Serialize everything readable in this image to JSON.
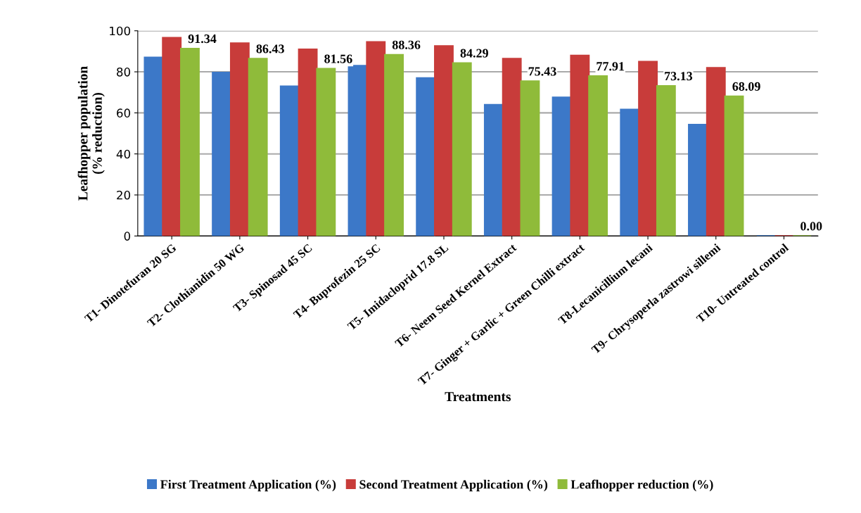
{
  "chart_data": {
    "type": "bar",
    "xlabel": "Treatments",
    "ylabel": "Leafhopper population\n(% reduction)",
    "categories": [
      "T1- Dinotefuran 20 SG",
      "T2- Clothianidin 50 WG",
      "T3- Spinosad 45 SC",
      "T4- Buprofezin 25 SC",
      "T5- Imidacloprid 17.8 SL",
      "T6- Neem Seed Kernel Extract",
      "T7- Ginger + Garlic + Green Chilli extract",
      "T8-Lecanicillium lecani",
      "T9- Chrysoperla zastrowi sillemi",
      "T10- Untreated control"
    ],
    "series": [
      {
        "name": "First Treatment Application (%)",
        "color": "#3c78c8",
        "values": [
          87,
          79.7,
          73,
          83,
          77,
          64,
          67.6,
          61.7,
          54.3,
          0
        ]
      },
      {
        "name": "Second Treatment Application (%)",
        "color": "#c83c3a",
        "values": [
          96.6,
          94,
          91,
          94.6,
          92.6,
          86.4,
          88,
          85,
          82,
          0
        ]
      },
      {
        "name": "Leafhopper reduction (%)",
        "color": "#8fbb3a",
        "values": [
          91.34,
          86.43,
          81.56,
          88.36,
          84.29,
          75.43,
          77.91,
          73.13,
          68.09,
          0
        ],
        "value_labels": [
          "91.34",
          "86.43",
          "81.56",
          "88.36",
          "84.29",
          "75.43",
          "77.91",
          "73.13",
          "68.09",
          "0.00"
        ]
      }
    ],
    "ylim": [
      0,
      100
    ],
    "yticks": [
      0,
      20,
      40,
      60,
      80,
      100
    ],
    "grid": "y",
    "legend": "bottom"
  }
}
